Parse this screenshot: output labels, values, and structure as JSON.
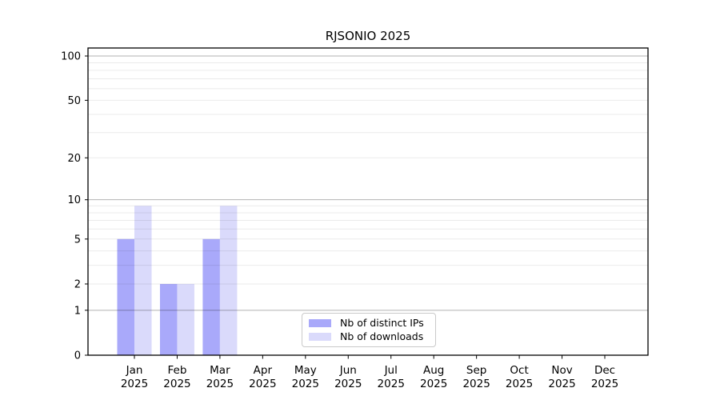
{
  "title": "RJSONIO 2025",
  "legend": {
    "items": [
      {
        "label": "Nb of distinct IPs",
        "color": "#a9a9fa"
      },
      {
        "label": "Nb of downloads",
        "color": "#dadafb"
      }
    ]
  },
  "chart_data": {
    "type": "bar",
    "title": "RJSONIO 2025",
    "categories": [
      "Jan",
      "Feb",
      "Mar",
      "Apr",
      "May",
      "Jun",
      "Jul",
      "Aug",
      "Sep",
      "Oct",
      "Nov",
      "Dec"
    ],
    "xtick_year": "2025",
    "series": [
      {
        "name": "Nb of distinct IPs",
        "color": "#a9a9fa",
        "values": [
          5,
          2,
          5,
          0,
          0,
          0,
          0,
          0,
          0,
          0,
          0,
          0
        ]
      },
      {
        "name": "Nb of downloads",
        "color": "#dadafb",
        "values": [
          9,
          2,
          9,
          0,
          0,
          0,
          0,
          0,
          0,
          0,
          0,
          0
        ]
      }
    ],
    "yscale": "log1p",
    "ylim": [
      0,
      113
    ],
    "yticks": [
      0,
      1,
      2,
      5,
      10,
      20,
      50,
      100
    ],
    "grid": {
      "major": [
        1,
        10,
        100
      ],
      "minor": [
        2,
        3,
        4,
        5,
        6,
        7,
        8,
        9,
        20,
        30,
        40,
        50,
        60,
        70,
        80,
        90
      ]
    },
    "legend_position": "lower center",
    "xlabel": "",
    "ylabel": "",
    "colors": {
      "axis": "#000000",
      "grid_major": "rgba(0,0,0,0.30)",
      "grid_minor": "rgba(0,0,0,0.08)",
      "text": "#000000",
      "background": "#ffffff"
    }
  }
}
